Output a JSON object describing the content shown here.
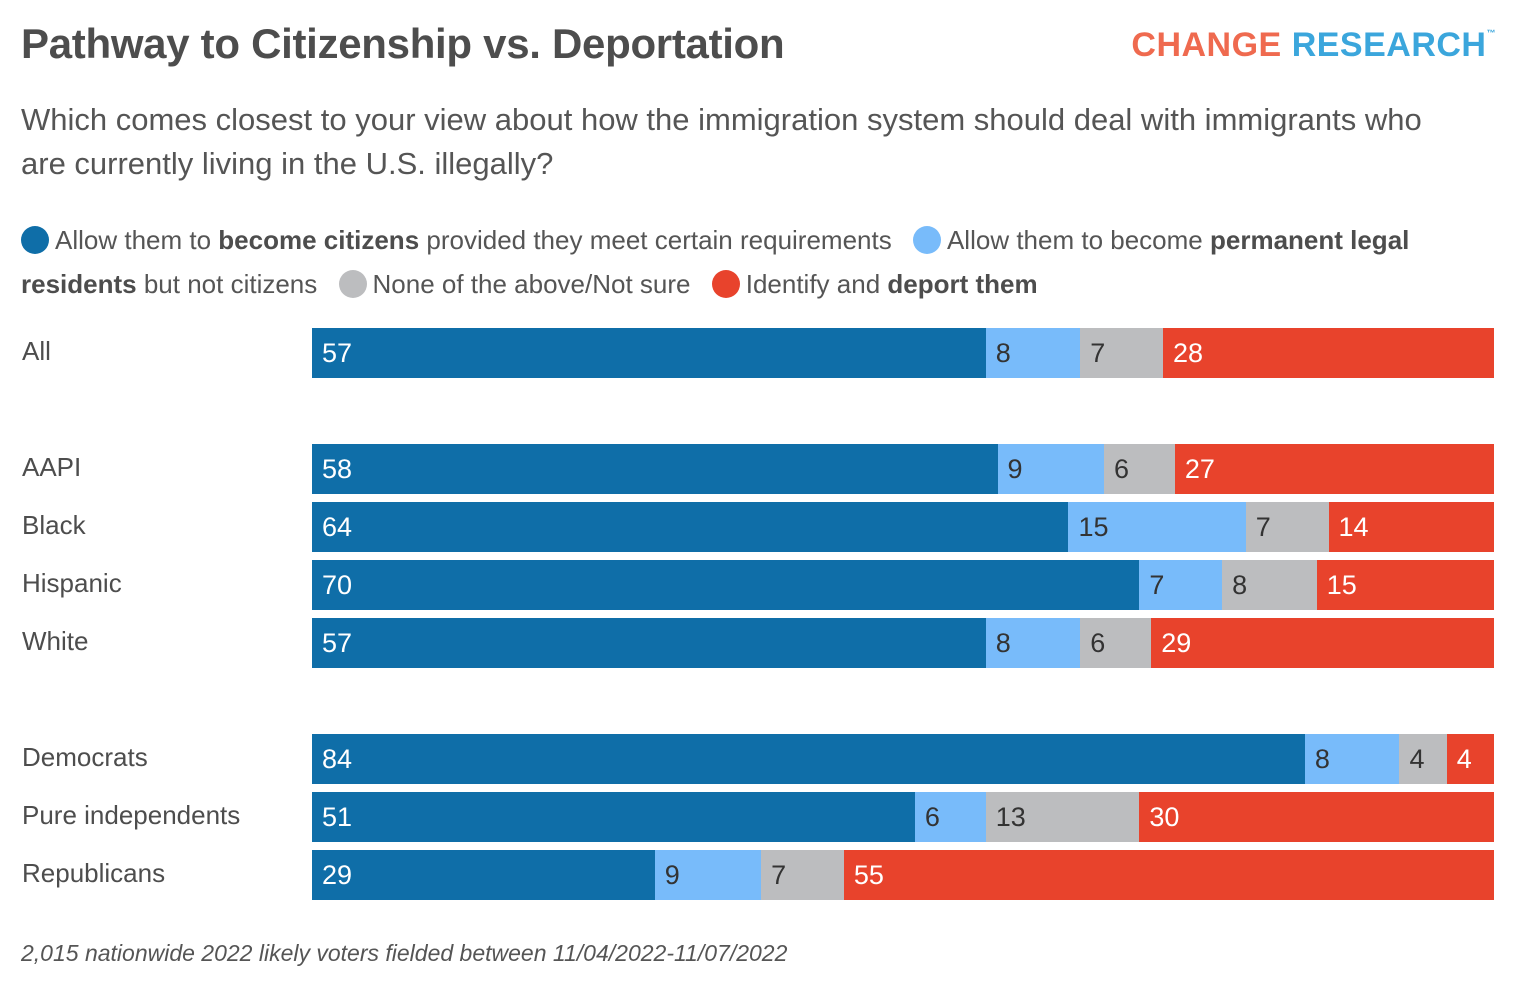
{
  "header": {
    "title": "Pathway to Citizenship vs. Deportation",
    "logo_part1": "CHANGE",
    "logo_part2": "RESEARCH",
    "logo_tm": "™"
  },
  "subtitle": "Which comes closest to your view about how the immigration system should deal with immigrants who are currently living in the U.S. illegally?",
  "footer": "2,015 nationwide 2022 likely voters fielded between 11/04/2022-11/07/2022",
  "chart_data": {
    "type": "bar",
    "orientation": "horizontal",
    "stacked": true,
    "title": "Pathway to Citizenship vs. Deportation",
    "subtitle": "Which comes closest to your view about how the immigration system should deal with immigrants who are currently living in the U.S. illegally?",
    "xlabel": "",
    "ylabel": "",
    "xlim": [
      0,
      100
    ],
    "grid": false,
    "legend_position": "top",
    "legend": [
      {
        "pre": "Allow them to ",
        "bold": "become citizens",
        "post": " provided they meet certain requirements",
        "color": "#0f6ea8"
      },
      {
        "pre": "Allow them to become ",
        "bold": "permanent legal residents",
        "post": " but not citizens",
        "color": "#78bbfa"
      },
      {
        "pre": "None of the above/Not sure",
        "bold": "",
        "post": "",
        "color": "#bcbdbf"
      },
      {
        "pre": "Identify and ",
        "bold": "deport them",
        "post": "",
        "color": "#e8432c"
      }
    ],
    "categories": [
      "All",
      "AAPI",
      "Black",
      "Hispanic",
      "White",
      "Democrats",
      "Pure independents",
      "Republicans"
    ],
    "groups": [
      [
        0
      ],
      [
        1,
        2,
        3,
        4
      ],
      [
        5,
        6,
        7
      ]
    ],
    "series": [
      {
        "name": "Allow them to become citizens provided they meet certain requirements",
        "color": "#0f6ea8",
        "label_color": "#ffffff",
        "values": [
          57,
          58,
          64,
          70,
          57,
          84,
          51,
          29
        ]
      },
      {
        "name": "Allow them to become permanent legal residents but not citizens",
        "color": "#78bbfa",
        "label_color": "#333333",
        "values": [
          8,
          9,
          15,
          7,
          8,
          8,
          6,
          9
        ]
      },
      {
        "name": "None of the above/Not sure",
        "color": "#bcbdbf",
        "label_color": "#333333",
        "values": [
          7,
          6,
          7,
          8,
          6,
          4,
          13,
          7
        ]
      },
      {
        "name": "Identify and deport them",
        "color": "#e8432c",
        "label_color": "#ffffff",
        "values": [
          28,
          27,
          14,
          15,
          29,
          4,
          30,
          55
        ]
      }
    ]
  }
}
